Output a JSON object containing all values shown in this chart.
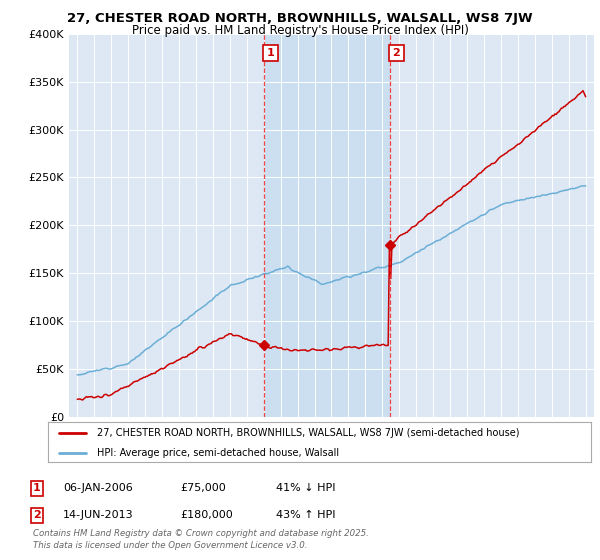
{
  "title_line1": "27, CHESTER ROAD NORTH, BROWNHILLS, WALSALL, WS8 7JW",
  "title_line2": "Price paid vs. HM Land Registry's House Price Index (HPI)",
  "ylim": [
    0,
    400000
  ],
  "yticks": [
    0,
    50000,
    100000,
    150000,
    200000,
    250000,
    300000,
    350000,
    400000
  ],
  "ytick_labels": [
    "£0",
    "£50K",
    "£100K",
    "£150K",
    "£200K",
    "£250K",
    "£300K",
    "£350K",
    "£400K"
  ],
  "xlim_start": 1994.5,
  "xlim_end": 2025.5,
  "hpi_color": "#6baed6",
  "price_color": "#cc0000",
  "vline_color": "#ee3333",
  "shade_color": "#c6dcf0",
  "event1_x": 2006.03,
  "event1_y": 75000,
  "event2_x": 2013.45,
  "event2_y": 180000,
  "legend_line1": "27, CHESTER ROAD NORTH, BROWNHILLS, WALSALL, WS8 7JW (semi-detached house)",
  "legend_line2": "HPI: Average price, semi-detached house, Walsall",
  "table_row1": [
    "1",
    "06-JAN-2006",
    "£75,000",
    "41% ↓ HPI"
  ],
  "table_row2": [
    "2",
    "14-JUN-2013",
    "£180,000",
    "43% ↑ HPI"
  ],
  "footer": "Contains HM Land Registry data © Crown copyright and database right 2025.\nThis data is licensed under the Open Government Licence v3.0.",
  "bg_color": "#ffffff",
  "plot_bg_color": "#dde8f4"
}
